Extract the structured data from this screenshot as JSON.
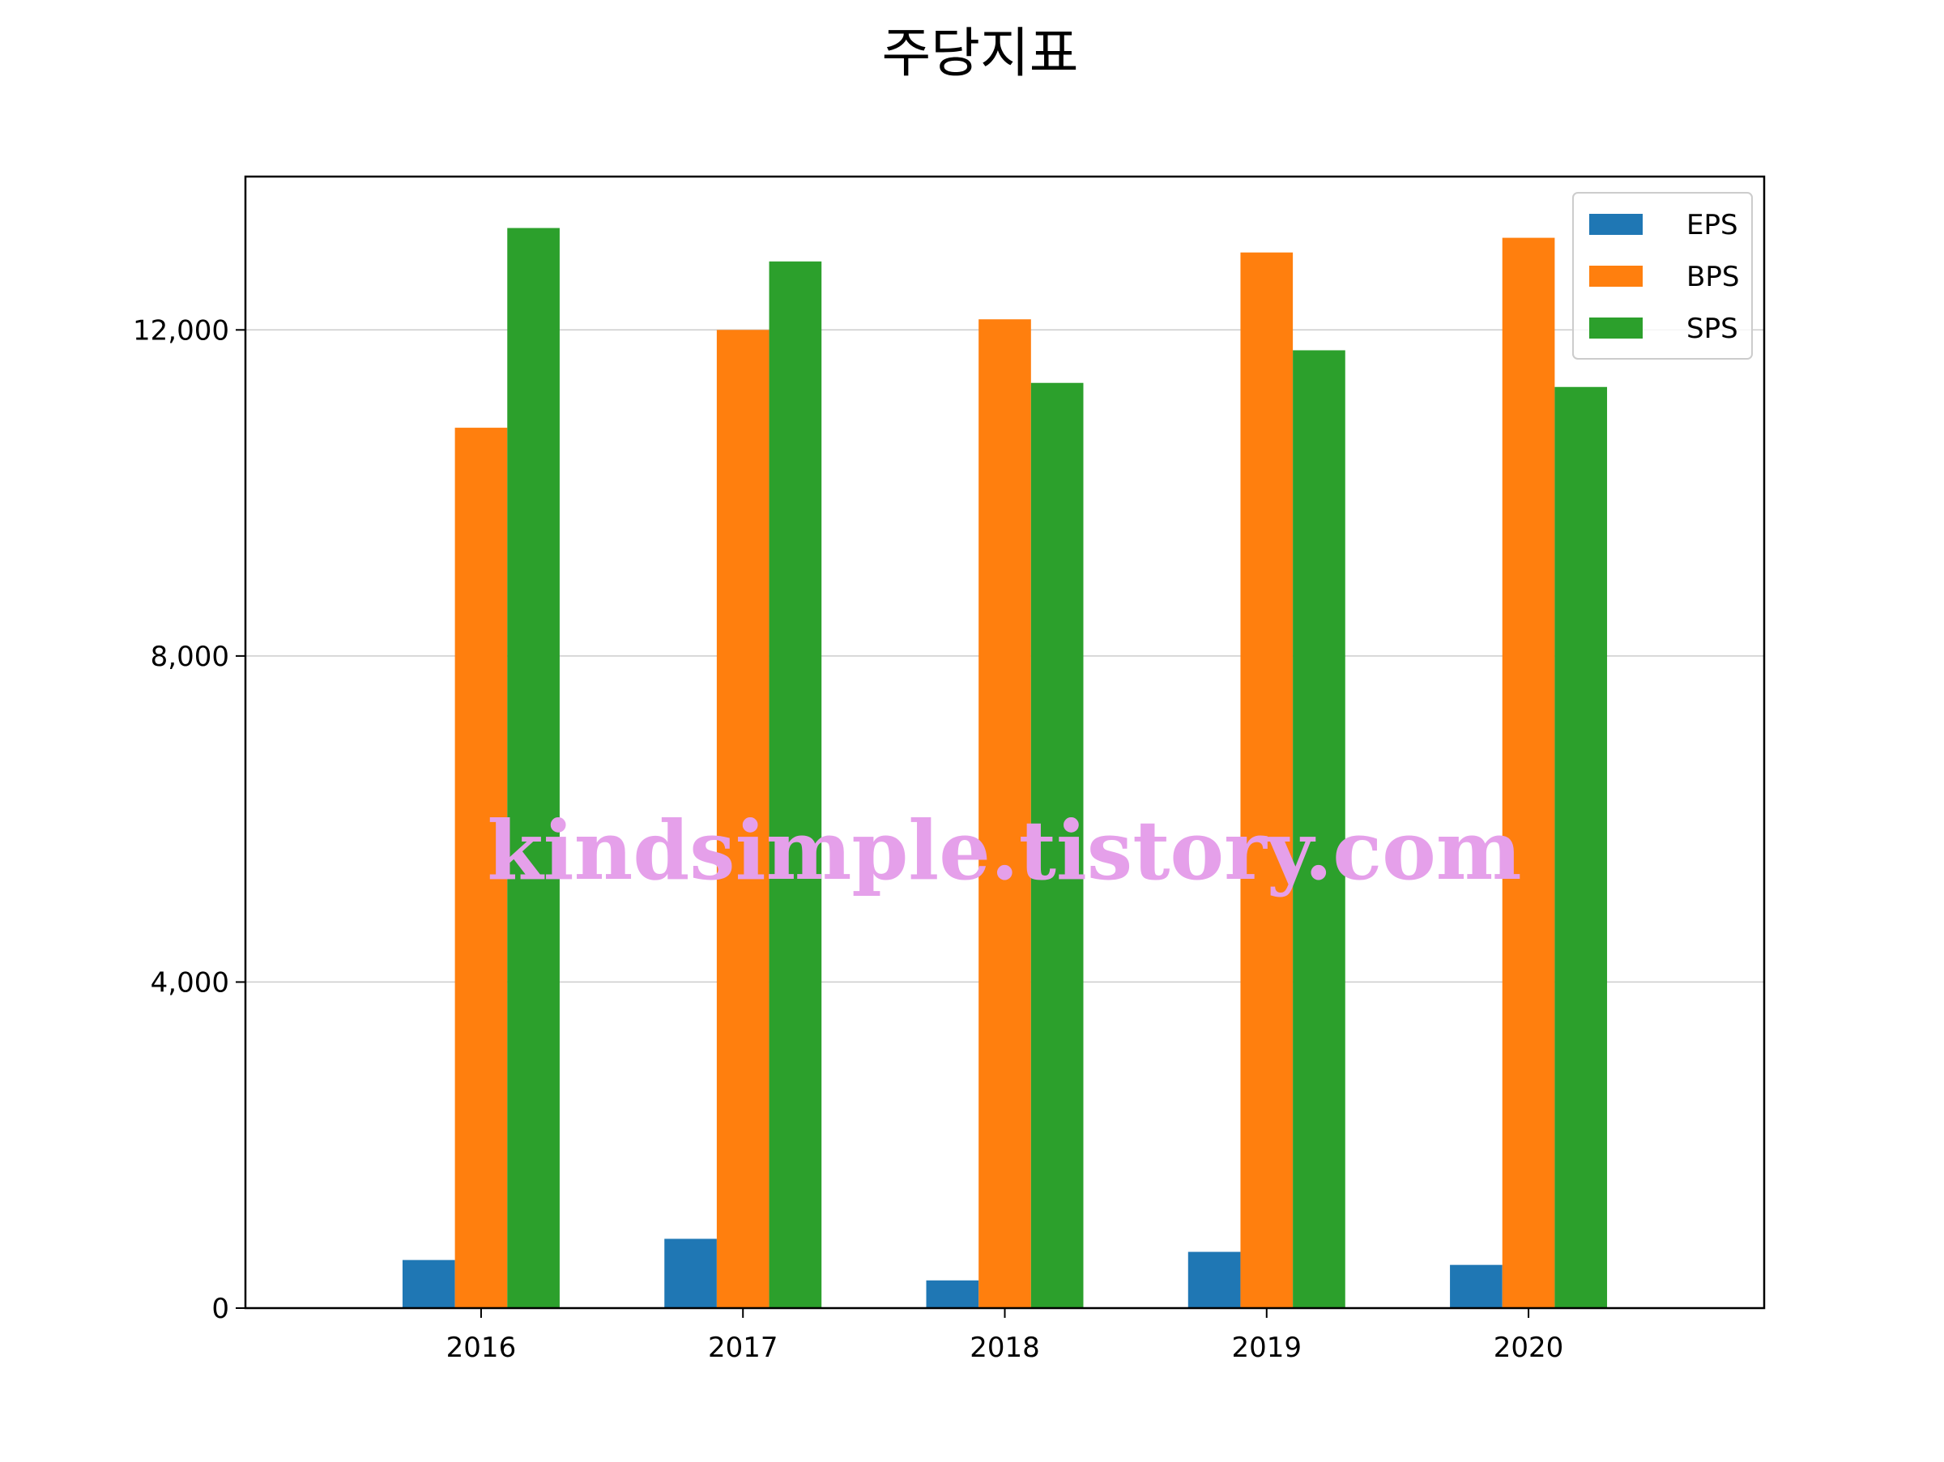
{
  "chart_data": {
    "type": "bar",
    "title": "주당지표",
    "xlabel": "",
    "ylabel": "",
    "categories": [
      "2016",
      "2017",
      "2018",
      "2019",
      "2020"
    ],
    "series": [
      {
        "name": "EPS",
        "color": "#1f77b4",
        "values": [
          590,
          850,
          340,
          690,
          530
        ]
      },
      {
        "name": "BPS",
        "color": "#ff7f0e",
        "values": [
          10800,
          12000,
          12130,
          12950,
          13130
        ]
      },
      {
        "name": "SPS",
        "color": "#2ca02c",
        "values": [
          13250,
          12840,
          11350,
          11750,
          11300
        ]
      }
    ],
    "ylim": [
      0,
      13881
    ],
    "yticks": [
      0,
      4000,
      8000,
      12000
    ],
    "ytick_labels": [
      "0",
      "4,000",
      "8,000",
      "12,000"
    ],
    "grid": "horizontal",
    "legend_position": "top-right"
  },
  "watermark": {
    "text": "kindsimple.tistory.com",
    "color": "#e5a0ea"
  }
}
